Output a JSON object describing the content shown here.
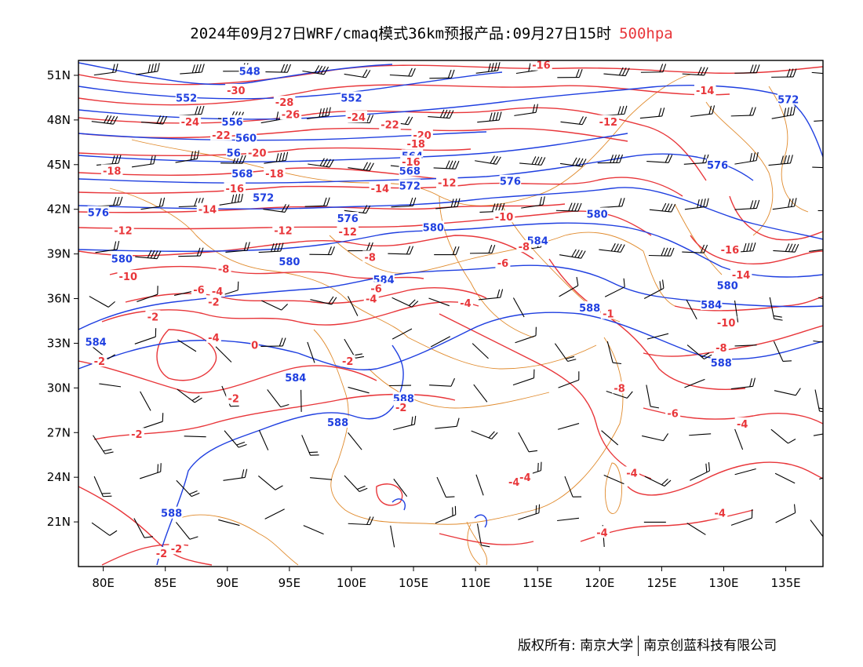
{
  "title": {
    "main": "2024年09月27日WRF/cmaq模式36km预报产品:09月27日15时",
    "level": "500hpa"
  },
  "footer": {
    "left": "版权所有: 南京大学",
    "right": "南京创蓝科技有限公司"
  },
  "axes": {
    "x_ticks": [
      "80E",
      "85E",
      "90E",
      "95E",
      "100E",
      "105E",
      "110E",
      "115E",
      "120E",
      "125E",
      "130E",
      "135E"
    ],
    "y_ticks": [
      "51N",
      "48N",
      "45N",
      "42N",
      "39N",
      "36N",
      "33N",
      "30N",
      "27N",
      "24N",
      "21N"
    ]
  },
  "colors": {
    "height_contour": "#1f3fe0",
    "temperature_contour": "#e8363a",
    "boundary": "#e08a2c",
    "wind_barb": "#000000",
    "level_text": "#e8363a"
  },
  "map": {
    "extent": {
      "lon": [
        78,
        138
      ],
      "lat": [
        18,
        52
      ]
    },
    "height_labels": [
      {
        "text": "548",
        "lon": 91.8,
        "lat": 51.3
      },
      {
        "text": "552",
        "lon": 86.7,
        "lat": 49.5
      },
      {
        "text": "552",
        "lon": 100.0,
        "lat": 49.5
      },
      {
        "text": "556",
        "lon": 90.4,
        "lat": 47.9
      },
      {
        "text": "560",
        "lon": 91.5,
        "lat": 46.8
      },
      {
        "text": "56",
        "lon": 90.5,
        "lat": 45.8
      },
      {
        "text": "564",
        "lon": 104.9,
        "lat": 45.6
      },
      {
        "text": "568",
        "lon": 104.7,
        "lat": 44.6
      },
      {
        "text": "568",
        "lon": 91.2,
        "lat": 44.4
      },
      {
        "text": "572",
        "lon": 92.9,
        "lat": 42.8
      },
      {
        "text": "572",
        "lon": 104.7,
        "lat": 43.6
      },
      {
        "text": "576",
        "lon": 112.8,
        "lat": 43.9
      },
      {
        "text": "576",
        "lon": 129.5,
        "lat": 45.0
      },
      {
        "text": "576",
        "lon": 99.7,
        "lat": 41.4
      },
      {
        "text": "572",
        "lon": 135.2,
        "lat": 49.4
      },
      {
        "text": "576",
        "lon": 79.6,
        "lat": 41.8
      },
      {
        "text": "580",
        "lon": 81.5,
        "lat": 38.7
      },
      {
        "text": "580",
        "lon": 95.0,
        "lat": 38.5
      },
      {
        "text": "580",
        "lon": 106.6,
        "lat": 40.8
      },
      {
        "text": "580",
        "lon": 119.8,
        "lat": 41.7
      },
      {
        "text": "580",
        "lon": 130.3,
        "lat": 36.9
      },
      {
        "text": "584",
        "lon": 115.0,
        "lat": 39.9
      },
      {
        "text": "584",
        "lon": 102.6,
        "lat": 37.3
      },
      {
        "text": "584",
        "lon": 79.4,
        "lat": 33.1
      },
      {
        "text": "584",
        "lon": 95.5,
        "lat": 30.7
      },
      {
        "text": "584",
        "lon": 129.0,
        "lat": 35.6
      },
      {
        "text": "588",
        "lon": 119.2,
        "lat": 35.4
      },
      {
        "text": "588",
        "lon": 104.2,
        "lat": 29.3
      },
      {
        "text": "588",
        "lon": 98.9,
        "lat": 27.7
      },
      {
        "text": "588",
        "lon": 129.8,
        "lat": 31.7
      },
      {
        "text": "588",
        "lon": 85.5,
        "lat": 21.6
      }
    ],
    "temperature_labels": [
      {
        "text": "-16",
        "lon": 115.3,
        "lat": 51.7
      },
      {
        "text": "-14",
        "lon": 128.5,
        "lat": 50.0
      },
      {
        "text": "-12",
        "lon": 120.7,
        "lat": 47.9
      },
      {
        "text": "-30",
        "lon": 90.7,
        "lat": 50.0
      },
      {
        "text": "-28",
        "lon": 94.6,
        "lat": 49.2
      },
      {
        "text": "-26",
        "lon": 95.1,
        "lat": 48.4
      },
      {
        "text": "-24",
        "lon": 100.4,
        "lat": 48.2
      },
      {
        "text": "-24",
        "lon": 87.0,
        "lat": 47.9
      },
      {
        "text": "-22",
        "lon": 103.1,
        "lat": 47.7
      },
      {
        "text": "-22",
        "lon": 89.5,
        "lat": 47.0
      },
      {
        "text": "-20",
        "lon": 105.7,
        "lat": 47.0
      },
      {
        "text": "-20",
        "lon": 92.4,
        "lat": 45.8
      },
      {
        "text": "-18",
        "lon": 105.2,
        "lat": 46.4
      },
      {
        "text": "-18",
        "lon": 80.7,
        "lat": 44.6
      },
      {
        "text": "-18",
        "lon": 93.8,
        "lat": 44.4
      },
      {
        "text": "-16",
        "lon": 104.8,
        "lat": 45.2
      },
      {
        "text": "-16",
        "lon": 90.6,
        "lat": 43.4
      },
      {
        "text": "-14",
        "lon": 102.3,
        "lat": 43.4
      },
      {
        "text": "-14",
        "lon": 88.4,
        "lat": 42.0
      },
      {
        "text": "-12",
        "lon": 81.6,
        "lat": 40.6
      },
      {
        "text": "-12",
        "lon": 94.5,
        "lat": 40.6
      },
      {
        "text": "-12",
        "lon": 99.7,
        "lat": 40.5
      },
      {
        "text": "-12",
        "lon": 107.7,
        "lat": 43.8
      },
      {
        "text": "-10",
        "lon": 112.3,
        "lat": 41.5
      },
      {
        "text": "-10",
        "lon": 82.0,
        "lat": 37.5
      },
      {
        "text": "-16",
        "lon": 130.5,
        "lat": 39.3
      },
      {
        "text": "-14",
        "lon": 131.4,
        "lat": 37.6
      },
      {
        "text": "-10",
        "lon": 130.2,
        "lat": 34.4
      },
      {
        "text": "-8",
        "lon": 101.5,
        "lat": 38.8
      },
      {
        "text": "-8",
        "lon": 89.7,
        "lat": 38.0
      },
      {
        "text": "-8",
        "lon": 113.9,
        "lat": 39.5
      },
      {
        "text": "-8",
        "lon": 129.8,
        "lat": 32.7
      },
      {
        "text": "-8",
        "lon": 121.6,
        "lat": 30.0
      },
      {
        "text": "-6",
        "lon": 112.2,
        "lat": 38.4
      },
      {
        "text": "-6",
        "lon": 87.7,
        "lat": 36.6
      },
      {
        "text": "-6",
        "lon": 102.0,
        "lat": 36.7
      },
      {
        "text": "-6",
        "lon": 125.9,
        "lat": 28.3
      },
      {
        "text": "-4",
        "lon": 89.2,
        "lat": 36.5
      },
      {
        "text": "-4",
        "lon": 101.6,
        "lat": 36.0
      },
      {
        "text": "-4",
        "lon": 109.2,
        "lat": 35.7
      },
      {
        "text": "-4",
        "lon": 88.9,
        "lat": 33.4
      },
      {
        "text": "-4",
        "lon": 131.5,
        "lat": 27.6
      },
      {
        "text": "-4",
        "lon": 113.1,
        "lat": 23.7
      },
      {
        "text": "-4",
        "lon": 114.0,
        "lat": 24.0
      },
      {
        "text": "-4",
        "lon": 122.6,
        "lat": 24.3
      },
      {
        "text": "-4",
        "lon": 129.7,
        "lat": 21.6
      },
      {
        "text": "-4",
        "lon": 120.2,
        "lat": 20.3
      },
      {
        "text": "-2",
        "lon": 88.9,
        "lat": 35.8
      },
      {
        "text": "-2",
        "lon": 84.0,
        "lat": 34.8
      },
      {
        "text": "-2",
        "lon": 99.7,
        "lat": 31.8
      },
      {
        "text": "-2",
        "lon": 79.7,
        "lat": 31.8
      },
      {
        "text": "-2",
        "lon": 90.5,
        "lat": 29.3
      },
      {
        "text": "-2",
        "lon": 104.0,
        "lat": 28.7
      },
      {
        "text": "-2",
        "lon": 82.7,
        "lat": 26.9
      },
      {
        "text": "-2",
        "lon": 84.7,
        "lat": 18.9
      },
      {
        "text": "-2",
        "lon": 85.9,
        "lat": 19.2
      },
      {
        "text": "0",
        "lon": 92.2,
        "lat": 32.9
      },
      {
        "text": "-1",
        "lon": 120.7,
        "lat": 35.0
      }
    ]
  }
}
